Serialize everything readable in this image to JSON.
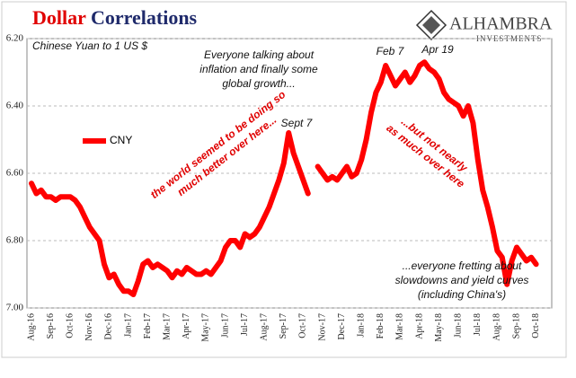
{
  "chart_data": {
    "type": "line",
    "title_parts": [
      "Dollar",
      "Correlations"
    ],
    "logo": [
      "ALHAMBRA",
      "INVESTMENTS"
    ],
    "y_note": "Chinese Yuan to 1 US $",
    "annotations": [
      {
        "lines": [
          "Everyone talking about",
          "inflation and finally some",
          "global growth..."
        ],
        "style": "plain"
      },
      {
        "lines": [
          "Sept 7"
        ],
        "style": "plain"
      },
      {
        "lines": [
          "Feb 7"
        ],
        "style": "plain"
      },
      {
        "lines": [
          "Apr 19"
        ],
        "style": "plain"
      },
      {
        "lines": [
          "the world seemed to be doing so",
          "much better over here..."
        ],
        "style": "red-up"
      },
      {
        "lines": [
          "...but not nearly",
          "as much over here"
        ],
        "style": "red-down"
      },
      {
        "lines": [
          "...everyone fretting about",
          "slowdowns and yield curves",
          "(including China's)"
        ],
        "style": "plain"
      }
    ],
    "categories": [
      "Aug-16",
      null,
      null,
      null,
      "Sep-16",
      null,
      null,
      null,
      "Oct-16",
      null,
      null,
      null,
      "Nov-16",
      null,
      null,
      null,
      "Dec-16",
      null,
      null,
      null,
      "Jan-17",
      null,
      null,
      null,
      "Feb-17",
      null,
      null,
      null,
      "Mar-17",
      null,
      null,
      null,
      "Apr-17",
      null,
      null,
      null,
      "May-17",
      null,
      null,
      null,
      "Jun-17",
      null,
      null,
      null,
      "Jul-17",
      null,
      null,
      null,
      "Aug-17",
      null,
      null,
      null,
      "Sep-17",
      null,
      null,
      null,
      "Oct-17",
      null,
      null,
      null,
      "Nov-17",
      null,
      null,
      null,
      "Dec-17",
      null,
      null,
      null,
      "Jan-18",
      null,
      null,
      null,
      "Feb-18",
      null,
      null,
      null,
      "Mar-18",
      null,
      null,
      null,
      "Apr-18",
      null,
      null,
      null,
      "May-18",
      null,
      null,
      null,
      "Jun-18",
      null,
      null,
      null,
      "Jul-18",
      null,
      null,
      null,
      "Aug-18",
      null,
      null,
      null,
      "Sep-18",
      null,
      null,
      null,
      "Oct-18",
      null,
      null
    ],
    "series": [
      {
        "name": "CNY",
        "color": "#ff0000",
        "values": [
          6.63,
          6.66,
          6.65,
          6.67,
          6.67,
          6.68,
          6.67,
          6.67,
          6.67,
          6.68,
          6.7,
          6.73,
          6.76,
          6.78,
          6.8,
          6.87,
          6.91,
          6.9,
          6.93,
          6.95,
          6.95,
          6.96,
          6.92,
          6.87,
          6.86,
          6.88,
          6.87,
          6.88,
          6.89,
          6.91,
          6.89,
          6.9,
          6.88,
          6.89,
          6.9,
          6.9,
          6.89,
          6.9,
          6.88,
          6.86,
          6.82,
          6.8,
          6.8,
          6.82,
          6.78,
          6.79,
          6.78,
          6.76,
          6.73,
          6.7,
          6.66,
          6.62,
          6.57,
          6.48,
          6.54,
          6.58,
          6.62,
          6.66,
          null,
          6.58,
          6.6,
          6.62,
          6.61,
          6.62,
          6.6,
          6.58,
          6.61,
          6.6,
          6.56,
          6.5,
          6.42,
          6.36,
          6.33,
          6.28,
          6.31,
          6.34,
          6.32,
          6.3,
          6.33,
          6.31,
          6.28,
          6.27,
          6.29,
          6.3,
          6.32,
          6.36,
          6.38,
          6.39,
          6.4,
          6.43,
          6.4,
          6.45,
          6.56,
          6.65,
          6.7,
          6.76,
          6.83,
          6.85,
          6.93,
          6.86,
          6.82,
          6.84,
          6.86,
          6.85,
          6.87,
          null,
          6.93
        ]
      }
    ],
    "ylim": [
      6.2,
      7.0
    ],
    "y_inverted": true,
    "yticks": [
      {
        "value": 6.2,
        "label": "6.20"
      },
      {
        "value": 6.4,
        "label": "6.40"
      },
      {
        "value": 6.6,
        "label": "6.60"
      },
      {
        "value": 6.8,
        "label": "6.80"
      },
      {
        "value": 7.0,
        "label": "7.00"
      }
    ],
    "grid": true
  }
}
